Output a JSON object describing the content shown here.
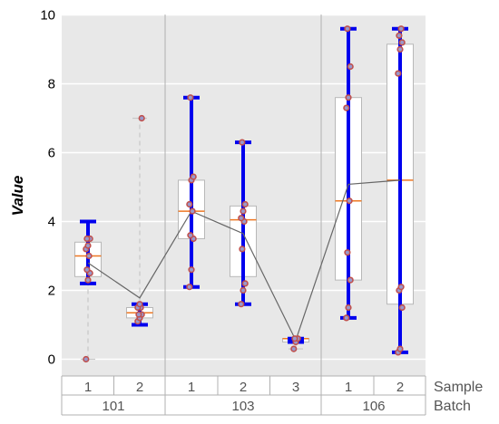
{
  "chart_data": {
    "type": "box",
    "title": "",
    "xlabel": "",
    "ylabel": "Value",
    "ylim": [
      -0.5,
      10
    ],
    "yticks": [
      0,
      2,
      4,
      6,
      8,
      10
    ],
    "grid": true,
    "row_labels": [
      "Sample",
      "Batch"
    ],
    "batches": [
      {
        "name": "101",
        "samples": [
          "1",
          "2"
        ]
      },
      {
        "name": "103",
        "samples": [
          "1",
          "2",
          "3"
        ]
      },
      {
        "name": "106",
        "samples": [
          "1",
          "2"
        ]
      }
    ],
    "groups": [
      {
        "batch": "101",
        "sample": "1",
        "q1": 2.4,
        "median": 3.0,
        "q3": 3.4,
        "whisker_low": 0.0,
        "whisker_high": 4.0,
        "bar_low": 2.2,
        "bar_high": 4.0,
        "points": [
          0.0,
          2.3,
          2.5,
          2.6,
          3.0,
          3.2,
          3.3,
          3.5,
          3.5
        ]
      },
      {
        "batch": "101",
        "sample": "2",
        "q1": 1.2,
        "median": 1.35,
        "q3": 1.5,
        "whisker_low": 1.0,
        "whisker_high": 7.0,
        "bar_low": 1.0,
        "bar_high": 1.6,
        "points": [
          1.1,
          1.2,
          1.3,
          1.3,
          1.5,
          1.5,
          1.6,
          7.0
        ]
      },
      {
        "batch": "103",
        "sample": "1",
        "q1": 3.5,
        "median": 4.3,
        "q3": 5.2,
        "whisker_low": 2.1,
        "whisker_high": 7.6,
        "bar_low": 2.1,
        "bar_high": 7.6,
        "points": [
          2.1,
          2.6,
          3.5,
          3.6,
          4.3,
          4.5,
          5.2,
          5.3,
          7.6
        ]
      },
      {
        "batch": "103",
        "sample": "2",
        "q1": 2.4,
        "median": 4.05,
        "q3": 4.45,
        "whisker_low": 1.6,
        "whisker_high": 6.3,
        "bar_low": 1.6,
        "bar_high": 6.3,
        "points": [
          1.6,
          2.0,
          2.2,
          3.2,
          4.0,
          4.1,
          4.3,
          4.5,
          6.3
        ]
      },
      {
        "batch": "103",
        "sample": "3",
        "q1": 0.5,
        "median": 0.6,
        "q3": 0.6,
        "whisker_low": 0.3,
        "whisker_high": 0.6,
        "bar_low": 0.5,
        "bar_high": 0.6,
        "points": [
          0.3,
          0.5,
          0.6,
          0.6
        ]
      },
      {
        "batch": "106",
        "sample": "1",
        "q1": 2.3,
        "median": 4.6,
        "q3": 7.6,
        "whisker_low": 1.2,
        "whisker_high": 9.6,
        "bar_low": 1.2,
        "bar_high": 9.6,
        "points": [
          1.2,
          1.5,
          2.3,
          3.1,
          4.6,
          7.3,
          7.6,
          8.5,
          9.6
        ]
      },
      {
        "batch": "106",
        "sample": "2",
        "q1": 1.6,
        "median": 5.2,
        "q3": 9.15,
        "whisker_low": 0.2,
        "whisker_high": 9.6,
        "bar_low": 0.2,
        "bar_high": 9.6,
        "points": [
          0.2,
          0.3,
          1.5,
          2.0,
          2.1,
          8.3,
          9.0,
          9.2,
          9.4,
          9.6
        ]
      }
    ],
    "mean_line": [
      2.8,
      1.78,
      4.3,
      3.65,
      0.55,
      5.08,
      5.2
    ],
    "colors": {
      "panel_bg": "#e8e8e8",
      "grid": "#ffffff",
      "box_fill": "#ffffff",
      "box_edge": "#b8b8b8",
      "median": "#ee7722",
      "bar": "#0000ee",
      "point_edge": "#c0504d",
      "point_fill": "#9999cc",
      "mean_line": "#666666",
      "whisker_dashed": "#c8c8c8",
      "separator": "#b0b0b0",
      "label_text": "#555555"
    }
  }
}
